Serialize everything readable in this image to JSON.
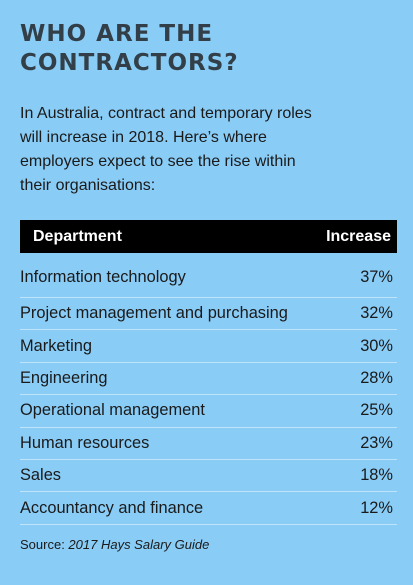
{
  "title": {
    "line1": "WHO ARE THE",
    "line2": "CONTRACTORS?"
  },
  "intro": {
    "line1": "In Australia, contract and temporary roles",
    "line2": "will increase in 2018. Here’s where",
    "line3": "employers expect to see the rise within",
    "line4": "their organisations:"
  },
  "table": {
    "headers": {
      "department": "Department",
      "increase": "Increase"
    },
    "rows": [
      {
        "department": "Information technology",
        "increase": "37%"
      },
      {
        "department": "Project management and purchasing",
        "increase": "32%"
      },
      {
        "department": "Marketing",
        "increase": "30%"
      },
      {
        "department": "Engineering",
        "increase": "28%"
      },
      {
        "department": "Operational management",
        "increase": "25%"
      },
      {
        "department": "Human resources",
        "increase": "23%"
      },
      {
        "department": "Sales",
        "increase": "18%"
      },
      {
        "department": "Accountancy and finance",
        "increase": "12%"
      }
    ]
  },
  "source": {
    "label": "Source: ",
    "publication": "2017 Hays Salary Guide"
  },
  "colors": {
    "background": "#89ccf6",
    "title": "#333f48",
    "header_bg": "#000000"
  }
}
